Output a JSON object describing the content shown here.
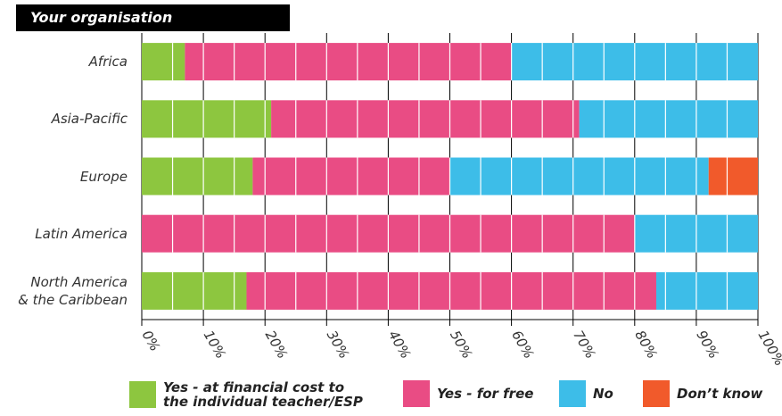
{
  "chart_data": {
    "type": "stacked-barh",
    "title": "Your organisation",
    "categories": [
      "Africa",
      "Asia-Pacific",
      "Europe",
      "Latin America",
      "North America\n& the Caribbean"
    ],
    "series": [
      {
        "name": "Yes - at financial cost to\nthe individual teacher/ESP",
        "color": "#8dc63f",
        "values": [
          7,
          21,
          18,
          0,
          17
        ]
      },
      {
        "name": "Yes - for free",
        "color": "#e94c84",
        "values": [
          53,
          50,
          32,
          80,
          66.5
        ]
      },
      {
        "name": "No",
        "color": "#3dbde8",
        "values": [
          40,
          29,
          42,
          20,
          16.5
        ]
      },
      {
        "name": "Don’t know",
        "color": "#f15a2b",
        "values": [
          0,
          0,
          8,
          0,
          0
        ]
      }
    ],
    "xlim": [
      0,
      100
    ],
    "xticks": [
      {
        "value": 0,
        "label": "0%"
      },
      {
        "value": 10,
        "label": "10%"
      },
      {
        "value": 20,
        "label": "20%"
      },
      {
        "value": 30,
        "label": "30%"
      },
      {
        "value": 40,
        "label": "40%"
      },
      {
        "value": 50,
        "label": "50%"
      },
      {
        "value": 60,
        "label": "60%"
      },
      {
        "value": 70,
        "label": "70%"
      },
      {
        "value": 80,
        "label": "80%"
      },
      {
        "value": 90,
        "label": "90%"
      },
      {
        "value": 100,
        "label": "100%"
      }
    ],
    "grid": true
  }
}
